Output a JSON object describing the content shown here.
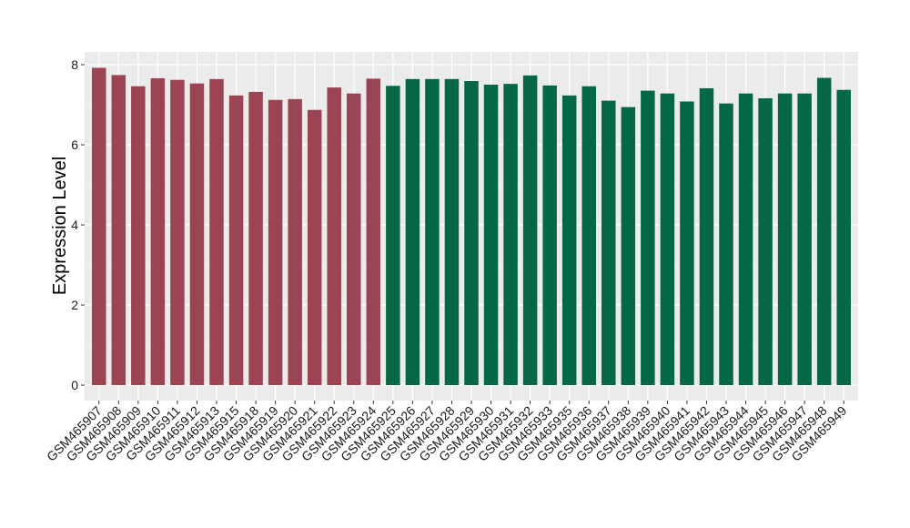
{
  "chart_data": {
    "type": "bar",
    "title": "",
    "xlabel": "",
    "ylabel": "Expression Level",
    "ylim": [
      0,
      8
    ],
    "y_ticks": [
      0,
      2,
      4,
      6,
      8
    ],
    "grid": true,
    "legend": "none",
    "colors": {
      "group1": "#9B4453",
      "group2": "#046845",
      "panel": "#EBEBEB",
      "grid": "#FFFFFF"
    },
    "categories": [
      "GSM465907",
      "GSM465908",
      "GSM465909",
      "GSM465910",
      "GSM465911",
      "GSM465912",
      "GSM465913",
      "GSM465915",
      "GSM465918",
      "GSM465919",
      "GSM465920",
      "GSM465921",
      "GSM465922",
      "GSM465923",
      "GSM465924",
      "GSM465925",
      "GSM465926",
      "GSM465927",
      "GSM465928",
      "GSM465929",
      "GSM465930",
      "GSM465931",
      "GSM465932",
      "GSM465933",
      "GSM465935",
      "GSM465936",
      "GSM465937",
      "GSM465938",
      "GSM465939",
      "GSM465940",
      "GSM465941",
      "GSM465942",
      "GSM465943",
      "GSM465944",
      "GSM465945",
      "GSM465946",
      "GSM465947",
      "GSM465948",
      "GSM465949"
    ],
    "values": [
      7.92,
      7.74,
      7.46,
      7.66,
      7.62,
      7.53,
      7.64,
      7.23,
      7.32,
      7.12,
      7.14,
      6.87,
      7.43,
      7.28,
      7.65,
      7.47,
      7.64,
      7.64,
      7.64,
      7.59,
      7.5,
      7.52,
      7.73,
      7.48,
      7.23,
      7.46,
      7.1,
      6.94,
      7.35,
      7.28,
      7.08,
      7.41,
      7.03,
      7.28,
      7.16,
      7.28,
      7.28,
      7.67,
      7.37
    ],
    "groups": [
      1,
      1,
      1,
      1,
      1,
      1,
      1,
      1,
      1,
      1,
      1,
      1,
      1,
      1,
      1,
      2,
      2,
      2,
      2,
      2,
      2,
      2,
      2,
      2,
      2,
      2,
      2,
      2,
      2,
      2,
      2,
      2,
      2,
      2,
      2,
      2,
      2,
      2,
      2
    ]
  }
}
